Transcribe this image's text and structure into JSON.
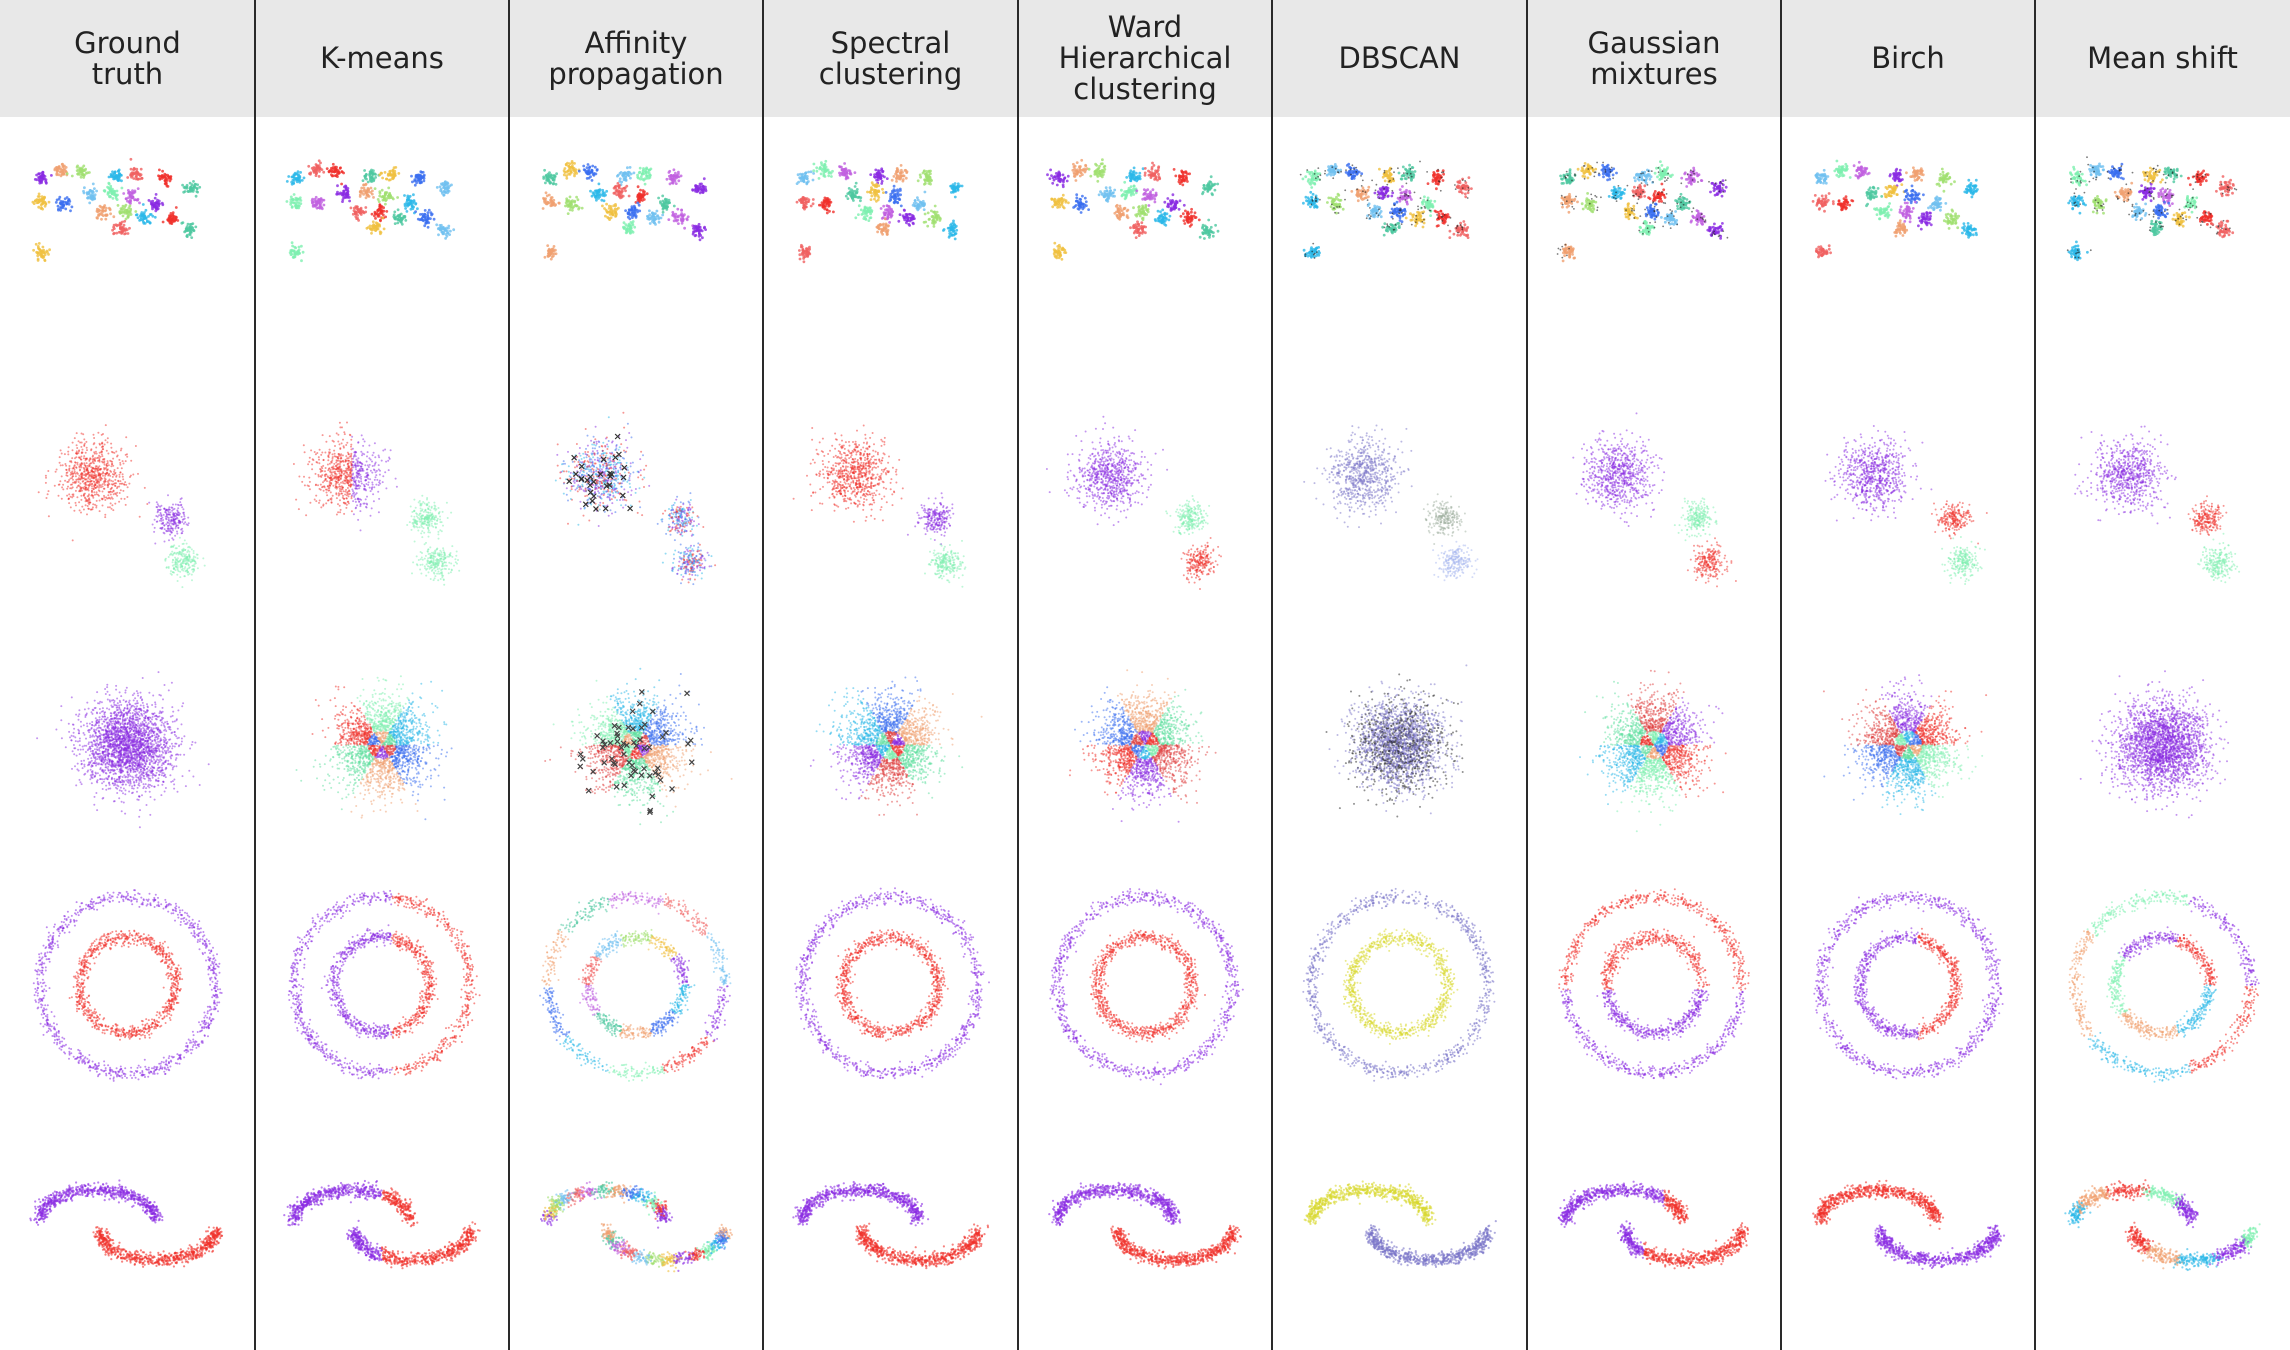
{
  "columns": [
    {
      "title": "Ground\ntruth",
      "method": "ground_truth"
    },
    {
      "title": "K-means",
      "method": "kmeans"
    },
    {
      "title": "Affinity\npropagation",
      "method": "affinity"
    },
    {
      "title": "Spectral\nclustering",
      "method": "spectral"
    },
    {
      "title": "Ward\nHierarchical\nclustering",
      "method": "ward"
    },
    {
      "title": "DBSCAN",
      "method": "dbscan"
    },
    {
      "title": "Gaussian\nmixtures",
      "method": "gmm"
    },
    {
      "title": "Birch",
      "method": "birch"
    },
    {
      "title": "Mean shift",
      "method": "meanshift"
    }
  ],
  "datasets": [
    {
      "name": "many-blobs"
    },
    {
      "name": "three-blobs"
    },
    {
      "name": "single-gaussian"
    },
    {
      "name": "concentric-circles"
    },
    {
      "name": "two-moons"
    }
  ],
  "colors": {
    "header_bg": "#e8e8e8",
    "divider": "#2a2a2a",
    "purple": "#8a2be2",
    "red": "#f0302a",
    "mint": "#7ef0b0",
    "cyan": "#2ab8e8",
    "blue": "#3a6ef0",
    "orange": "#f0a070",
    "yellow": "#d8d830",
    "slate": "#7a74c8",
    "noise": "#222222"
  }
}
